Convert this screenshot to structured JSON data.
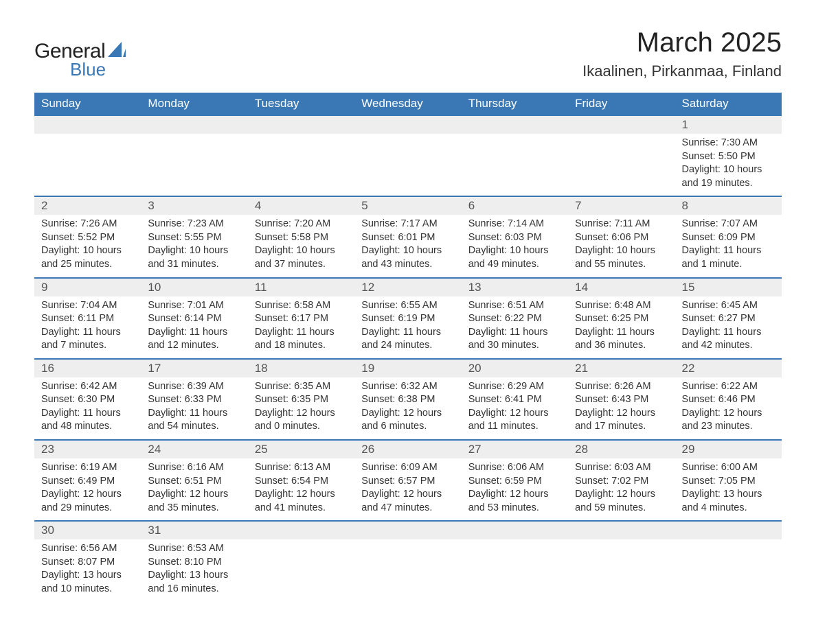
{
  "brand": {
    "text_a": "General",
    "text_b": "Blue",
    "shape_color": "#3a78b5"
  },
  "title": "March 2025",
  "location": "Ikaalinen, Pirkanmaa, Finland",
  "colors": {
    "header_bg": "#3a78b5",
    "header_text": "#ffffff",
    "daynum_bg": "#eeeeee",
    "text": "#333333",
    "row_border": "#3a78b5",
    "page_bg": "#ffffff"
  },
  "typography": {
    "title_fontsize": 40,
    "location_fontsize": 22,
    "header_fontsize": 17,
    "daynum_fontsize": 17,
    "body_fontsize": 14.5,
    "font_family": "Arial"
  },
  "layout": {
    "columns": 7,
    "rows": 6,
    "first_weekday": "Sunday"
  },
  "weekdays": [
    "Sunday",
    "Monday",
    "Tuesday",
    "Wednesday",
    "Thursday",
    "Friday",
    "Saturday"
  ],
  "weeks": [
    [
      {
        "day": "",
        "lines": [
          "",
          "",
          "",
          ""
        ]
      },
      {
        "day": "",
        "lines": [
          "",
          "",
          "",
          ""
        ]
      },
      {
        "day": "",
        "lines": [
          "",
          "",
          "",
          ""
        ]
      },
      {
        "day": "",
        "lines": [
          "",
          "",
          "",
          ""
        ]
      },
      {
        "day": "",
        "lines": [
          "",
          "",
          "",
          ""
        ]
      },
      {
        "day": "",
        "lines": [
          "",
          "",
          "",
          ""
        ]
      },
      {
        "day": "1",
        "lines": [
          "Sunrise: 7:30 AM",
          "Sunset: 5:50 PM",
          "Daylight: 10 hours",
          "and 19 minutes."
        ]
      }
    ],
    [
      {
        "day": "2",
        "lines": [
          "Sunrise: 7:26 AM",
          "Sunset: 5:52 PM",
          "Daylight: 10 hours",
          "and 25 minutes."
        ]
      },
      {
        "day": "3",
        "lines": [
          "Sunrise: 7:23 AM",
          "Sunset: 5:55 PM",
          "Daylight: 10 hours",
          "and 31 minutes."
        ]
      },
      {
        "day": "4",
        "lines": [
          "Sunrise: 7:20 AM",
          "Sunset: 5:58 PM",
          "Daylight: 10 hours",
          "and 37 minutes."
        ]
      },
      {
        "day": "5",
        "lines": [
          "Sunrise: 7:17 AM",
          "Sunset: 6:01 PM",
          "Daylight: 10 hours",
          "and 43 minutes."
        ]
      },
      {
        "day": "6",
        "lines": [
          "Sunrise: 7:14 AM",
          "Sunset: 6:03 PM",
          "Daylight: 10 hours",
          "and 49 minutes."
        ]
      },
      {
        "day": "7",
        "lines": [
          "Sunrise: 7:11 AM",
          "Sunset: 6:06 PM",
          "Daylight: 10 hours",
          "and 55 minutes."
        ]
      },
      {
        "day": "8",
        "lines": [
          "Sunrise: 7:07 AM",
          "Sunset: 6:09 PM",
          "Daylight: 11 hours",
          "and 1 minute."
        ]
      }
    ],
    [
      {
        "day": "9",
        "lines": [
          "Sunrise: 7:04 AM",
          "Sunset: 6:11 PM",
          "Daylight: 11 hours",
          "and 7 minutes."
        ]
      },
      {
        "day": "10",
        "lines": [
          "Sunrise: 7:01 AM",
          "Sunset: 6:14 PM",
          "Daylight: 11 hours",
          "and 12 minutes."
        ]
      },
      {
        "day": "11",
        "lines": [
          "Sunrise: 6:58 AM",
          "Sunset: 6:17 PM",
          "Daylight: 11 hours",
          "and 18 minutes."
        ]
      },
      {
        "day": "12",
        "lines": [
          "Sunrise: 6:55 AM",
          "Sunset: 6:19 PM",
          "Daylight: 11 hours",
          "and 24 minutes."
        ]
      },
      {
        "day": "13",
        "lines": [
          "Sunrise: 6:51 AM",
          "Sunset: 6:22 PM",
          "Daylight: 11 hours",
          "and 30 minutes."
        ]
      },
      {
        "day": "14",
        "lines": [
          "Sunrise: 6:48 AM",
          "Sunset: 6:25 PM",
          "Daylight: 11 hours",
          "and 36 minutes."
        ]
      },
      {
        "day": "15",
        "lines": [
          "Sunrise: 6:45 AM",
          "Sunset: 6:27 PM",
          "Daylight: 11 hours",
          "and 42 minutes."
        ]
      }
    ],
    [
      {
        "day": "16",
        "lines": [
          "Sunrise: 6:42 AM",
          "Sunset: 6:30 PM",
          "Daylight: 11 hours",
          "and 48 minutes."
        ]
      },
      {
        "day": "17",
        "lines": [
          "Sunrise: 6:39 AM",
          "Sunset: 6:33 PM",
          "Daylight: 11 hours",
          "and 54 minutes."
        ]
      },
      {
        "day": "18",
        "lines": [
          "Sunrise: 6:35 AM",
          "Sunset: 6:35 PM",
          "Daylight: 12 hours",
          "and 0 minutes."
        ]
      },
      {
        "day": "19",
        "lines": [
          "Sunrise: 6:32 AM",
          "Sunset: 6:38 PM",
          "Daylight: 12 hours",
          "and 6 minutes."
        ]
      },
      {
        "day": "20",
        "lines": [
          "Sunrise: 6:29 AM",
          "Sunset: 6:41 PM",
          "Daylight: 12 hours",
          "and 11 minutes."
        ]
      },
      {
        "day": "21",
        "lines": [
          "Sunrise: 6:26 AM",
          "Sunset: 6:43 PM",
          "Daylight: 12 hours",
          "and 17 minutes."
        ]
      },
      {
        "day": "22",
        "lines": [
          "Sunrise: 6:22 AM",
          "Sunset: 6:46 PM",
          "Daylight: 12 hours",
          "and 23 minutes."
        ]
      }
    ],
    [
      {
        "day": "23",
        "lines": [
          "Sunrise: 6:19 AM",
          "Sunset: 6:49 PM",
          "Daylight: 12 hours",
          "and 29 minutes."
        ]
      },
      {
        "day": "24",
        "lines": [
          "Sunrise: 6:16 AM",
          "Sunset: 6:51 PM",
          "Daylight: 12 hours",
          "and 35 minutes."
        ]
      },
      {
        "day": "25",
        "lines": [
          "Sunrise: 6:13 AM",
          "Sunset: 6:54 PM",
          "Daylight: 12 hours",
          "and 41 minutes."
        ]
      },
      {
        "day": "26",
        "lines": [
          "Sunrise: 6:09 AM",
          "Sunset: 6:57 PM",
          "Daylight: 12 hours",
          "and 47 minutes."
        ]
      },
      {
        "day": "27",
        "lines": [
          "Sunrise: 6:06 AM",
          "Sunset: 6:59 PM",
          "Daylight: 12 hours",
          "and 53 minutes."
        ]
      },
      {
        "day": "28",
        "lines": [
          "Sunrise: 6:03 AM",
          "Sunset: 7:02 PM",
          "Daylight: 12 hours",
          "and 59 minutes."
        ]
      },
      {
        "day": "29",
        "lines": [
          "Sunrise: 6:00 AM",
          "Sunset: 7:05 PM",
          "Daylight: 13 hours",
          "and 4 minutes."
        ]
      }
    ],
    [
      {
        "day": "30",
        "lines": [
          "Sunrise: 6:56 AM",
          "Sunset: 8:07 PM",
          "Daylight: 13 hours",
          "and 10 minutes."
        ]
      },
      {
        "day": "31",
        "lines": [
          "Sunrise: 6:53 AM",
          "Sunset: 8:10 PM",
          "Daylight: 13 hours",
          "and 16 minutes."
        ]
      },
      {
        "day": "",
        "lines": [
          "",
          "",
          "",
          ""
        ]
      },
      {
        "day": "",
        "lines": [
          "",
          "",
          "",
          ""
        ]
      },
      {
        "day": "",
        "lines": [
          "",
          "",
          "",
          ""
        ]
      },
      {
        "day": "",
        "lines": [
          "",
          "",
          "",
          ""
        ]
      },
      {
        "day": "",
        "lines": [
          "",
          "",
          "",
          ""
        ]
      }
    ]
  ]
}
